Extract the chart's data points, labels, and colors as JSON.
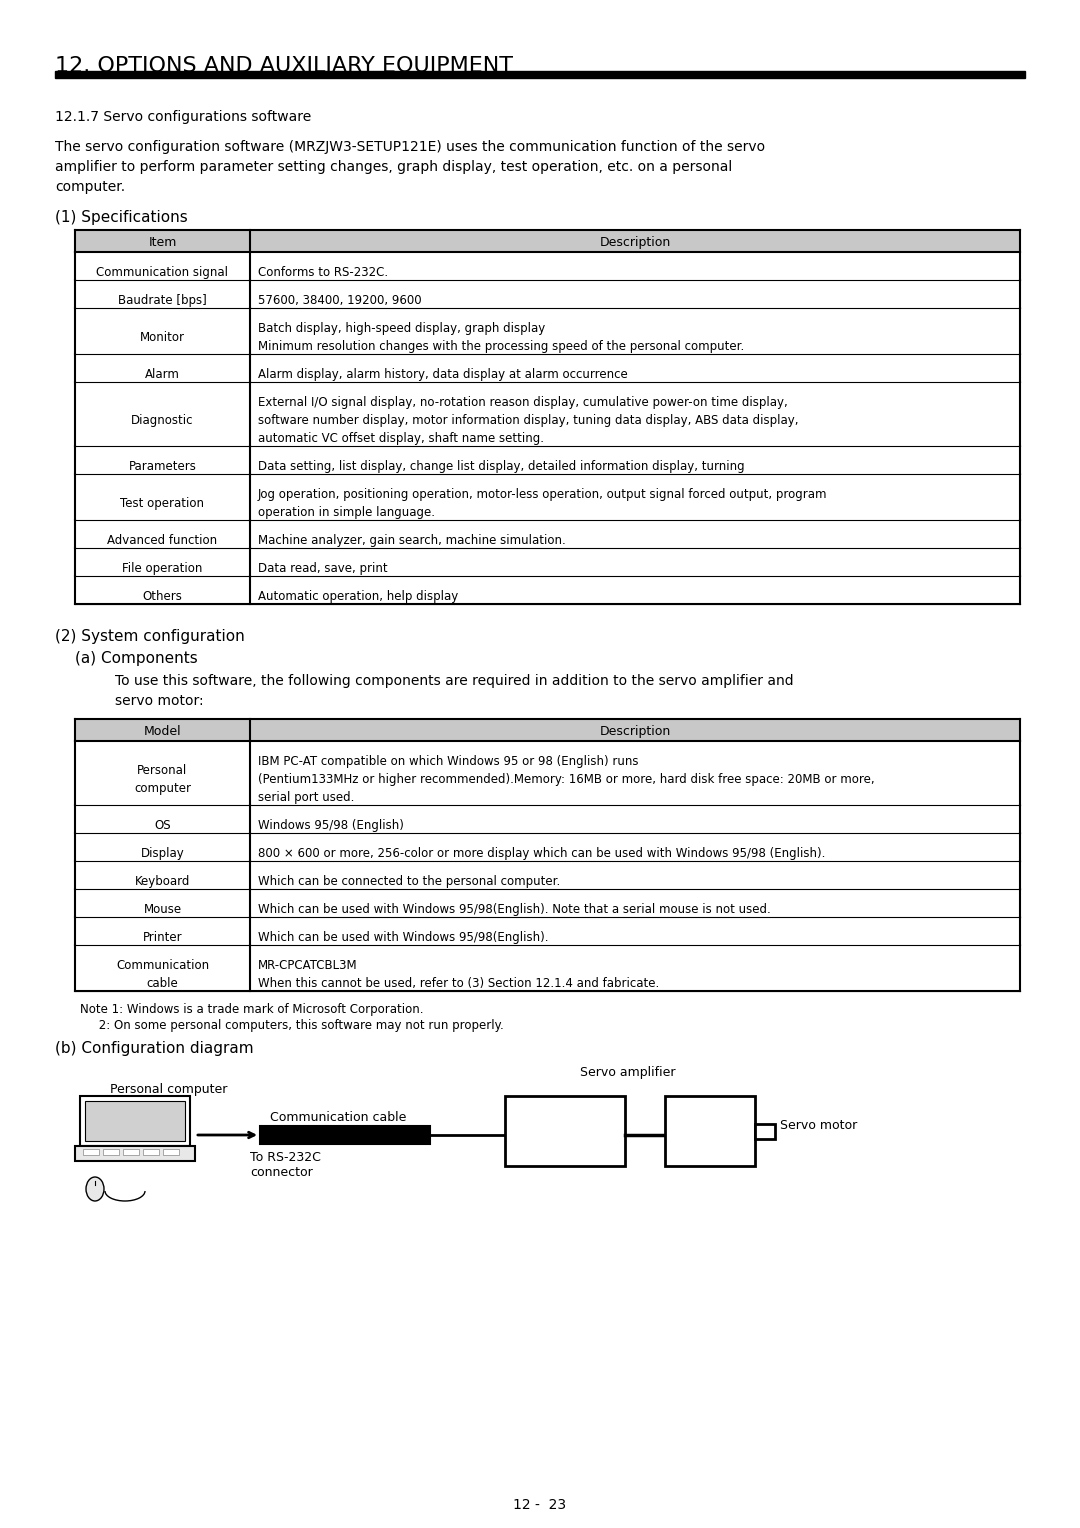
{
  "title": "12. OPTIONS AND AUXILIARY EQUIPMENT",
  "subtitle": "12.1.7 Servo configurations software",
  "intro_text": "The servo configuration software (MRZJW3-SETUP121E) uses the communication function of the servo amplifier to perform parameter setting changes, graph display, test operation, etc. on a personal computer.",
  "spec_title": "(1) Specifications",
  "spec_table_headers": [
    "Item",
    "Description"
  ],
  "spec_table_rows": [
    [
      "Communication signal",
      "Conforms to RS-232C."
    ],
    [
      "Baudrate [bps]",
      "57600, 38400, 19200, 9600"
    ],
    [
      "Monitor",
      "Batch display, high-speed display, graph display\nMinimum resolution changes with the processing speed of the personal computer."
    ],
    [
      "Alarm",
      "Alarm display, alarm history, data display at alarm occurrence"
    ],
    [
      "Diagnostic",
      "External I/O signal display, no-rotation reason display, cumulative power-on time display,\nsoftware number display, motor information display, tuning data display, ABS data display,\nautomatic VC offset display, shaft name setting."
    ],
    [
      "Parameters",
      "Data setting, list display, change list display, detailed information display, turning"
    ],
    [
      "Test operation",
      "Jog operation, positioning operation, motor-less operation, output signal forced output, program\noperation in simple language."
    ],
    [
      "Advanced function",
      "Machine analyzer, gain search, machine simulation."
    ],
    [
      "File operation",
      "Data read, save, print"
    ],
    [
      "Others",
      "Automatic operation, help display"
    ]
  ],
  "sys_config_title": "(2) System configuration",
  "components_title": "(a) Components",
  "components_text": "To use this software, the following components are required in addition to the servo amplifier and\nservo motor:",
  "comp_table_headers": [
    "Model",
    "Description"
  ],
  "comp_table_rows": [
    [
      "Personal\ncomputer",
      "IBM PC-AT compatible on which Windows 95 or 98 (English) runs\n(Pentium133MHz or higher recommended).Memory: 16MB or more, hard disk free space: 20MB or more,\nserial port used."
    ],
    [
      "OS",
      "Windows 95/98 (English)"
    ],
    [
      "Display",
      "800 × 600 or more, 256-color or more display which can be used with Windows 95/98 (English)."
    ],
    [
      "Keyboard",
      "Which can be connected to the personal computer."
    ],
    [
      "Mouse",
      "Which can be used with Windows 95/98(English). Note that a serial mouse is not used."
    ],
    [
      "Printer",
      "Which can be used with Windows 95/98(English)."
    ],
    [
      "Communication\ncable",
      "MR-CPCATCBL3M\nWhen this cannot be used, refer to (3) Section 12.1.4 and fabricate."
    ]
  ],
  "note1": "Note 1: Windows is a trade mark of Microsoft Corporation.",
  "note2": "     2: On some personal computers, this software may not run properly.",
  "diagram_title": "(b) Configuration diagram",
  "page_number": "12 -  23",
  "bg_color": "#ffffff",
  "text_color": "#000000",
  "header_bg": "#e8e8e8",
  "table_border": "#000000"
}
